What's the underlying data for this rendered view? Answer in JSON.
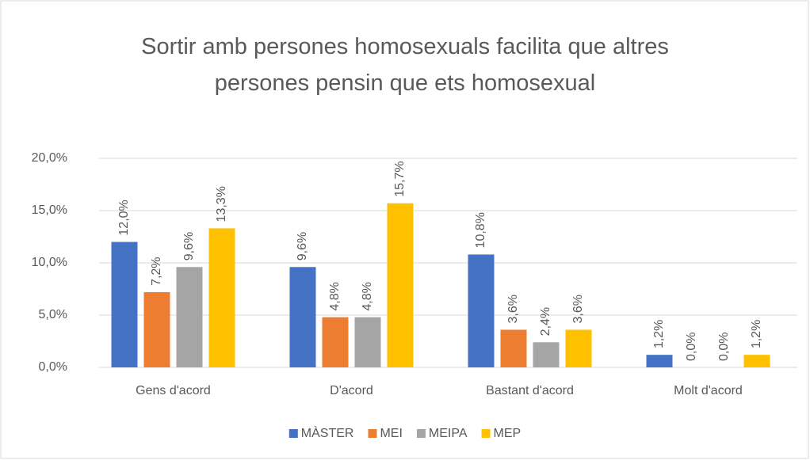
{
  "chart_data": {
    "type": "bar",
    "title": "Sortir amb persones homosexuals facilita que altres persones pensin que ets homosexual",
    "categories": [
      "Gens d'acord",
      "D'acord",
      "Bastant d'acord",
      "Molt d'acord"
    ],
    "series": [
      {
        "name": "MÀSTER",
        "color": "#4472c4",
        "values": [
          12.0,
          9.6,
          10.8,
          1.2
        ],
        "value_labels": [
          "12,0%",
          "9,6%",
          "10,8%",
          "1,2%"
        ]
      },
      {
        "name": "MEI",
        "color": "#ed7d31",
        "values": [
          7.2,
          4.8,
          3.6,
          0.0
        ],
        "value_labels": [
          "7,2%",
          "4,8%",
          "3,6%",
          "0,0%"
        ]
      },
      {
        "name": "MEIPA",
        "color": "#a5a5a5",
        "values": [
          9.6,
          4.8,
          2.4,
          0.0
        ],
        "value_labels": [
          "9,6%",
          "4,8%",
          "2,4%",
          "0,0%"
        ]
      },
      {
        "name": "MEP",
        "color": "#ffc000",
        "values": [
          13.3,
          15.7,
          3.6,
          1.2
        ],
        "value_labels": [
          "13,3%",
          "15,7%",
          "3,6%",
          "1,2%"
        ]
      }
    ],
    "ylim": [
      0,
      20
    ],
    "yticks": [
      {
        "value": 0,
        "label": "0,0%"
      },
      {
        "value": 5,
        "label": "5,0%"
      },
      {
        "value": 10,
        "label": "10,0%"
      },
      {
        "value": 15,
        "label": "15,0%"
      },
      {
        "value": 20,
        "label": "20,0%"
      }
    ],
    "grid": true,
    "legend": "bottom"
  }
}
